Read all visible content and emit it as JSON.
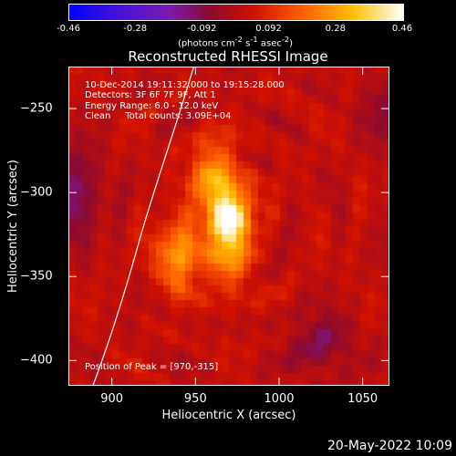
{
  "colorbar": {
    "ticks": [
      "-0.46",
      "-0.28",
      "-0.092",
      "0.092",
      "0.28",
      "0.46"
    ],
    "unit_prefix": "(photons cm",
    "unit_sup1": "-2",
    "unit_mid1": " s",
    "unit_sup2": "-1",
    "unit_mid2": " asec",
    "unit_sup3": "-2",
    "unit_suffix": ")"
  },
  "chart_data": {
    "type": "heatmap",
    "title": "Reconstructed RHESSI Image",
    "xlabel": "Heliocentric X (arcsec)",
    "ylabel": "Heliocentric Y (arcsec)",
    "xlim": [
      874,
      1066
    ],
    "ylim": [
      -415,
      -225
    ],
    "xticks": [
      900,
      950,
      1000,
      1050
    ],
    "yticks": [
      -250,
      -300,
      -350,
      -400
    ],
    "zlim": [
      -0.46,
      0.46
    ],
    "colormap": "blue-purple-red-orange-yellow-white",
    "peak": {
      "x": 970,
      "y": -315
    },
    "sources": [
      {
        "x": 970,
        "y": -315,
        "amp": 0.46
      },
      {
        "x": 960,
        "y": -288,
        "amp": 0.22
      },
      {
        "x": 940,
        "y": -337,
        "amp": 0.27
      },
      {
        "x": 970,
        "y": -345,
        "amp": 0.14
      }
    ],
    "annotations": [
      "10-Dec-2014 19:11:32.000 to 19:15:28.000",
      "Detectors: 3F 6F 7F 9F, Att 1",
      "Energy Range: 6.0 - 12.0 keV",
      "Clean     Total counts: 3.09E+04"
    ],
    "peak_label": "Position of Peak = [970,-315]"
  },
  "footer": {
    "date": "20-May-2022 10:09"
  }
}
